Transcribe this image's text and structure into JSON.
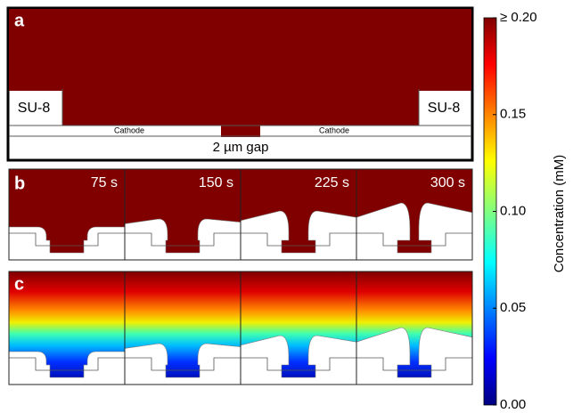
{
  "panels": [
    {
      "label": "a",
      "su8_left": "SU-8",
      "su8_right": "SU-8",
      "cathode_left": "Cathode",
      "cathode_right": "Cathode",
      "gap": "2 µm gap"
    },
    {
      "label": "b",
      "times": [
        "75 s",
        "150 s",
        "225 s",
        "300 s"
      ]
    },
    {
      "label": "c"
    }
  ],
  "colorbar": {
    "label": "Concentration (mM)",
    "lim": [
      0,
      0.2
    ],
    "ticks": [
      {
        "value": 0,
        "label": "0.00"
      },
      0.05,
      {
        "value": 0.1,
        "label": "0.10"
      },
      0.15,
      {
        "value": 0.2,
        "label": "≥ 0.20"
      }
    ]
  }
}
